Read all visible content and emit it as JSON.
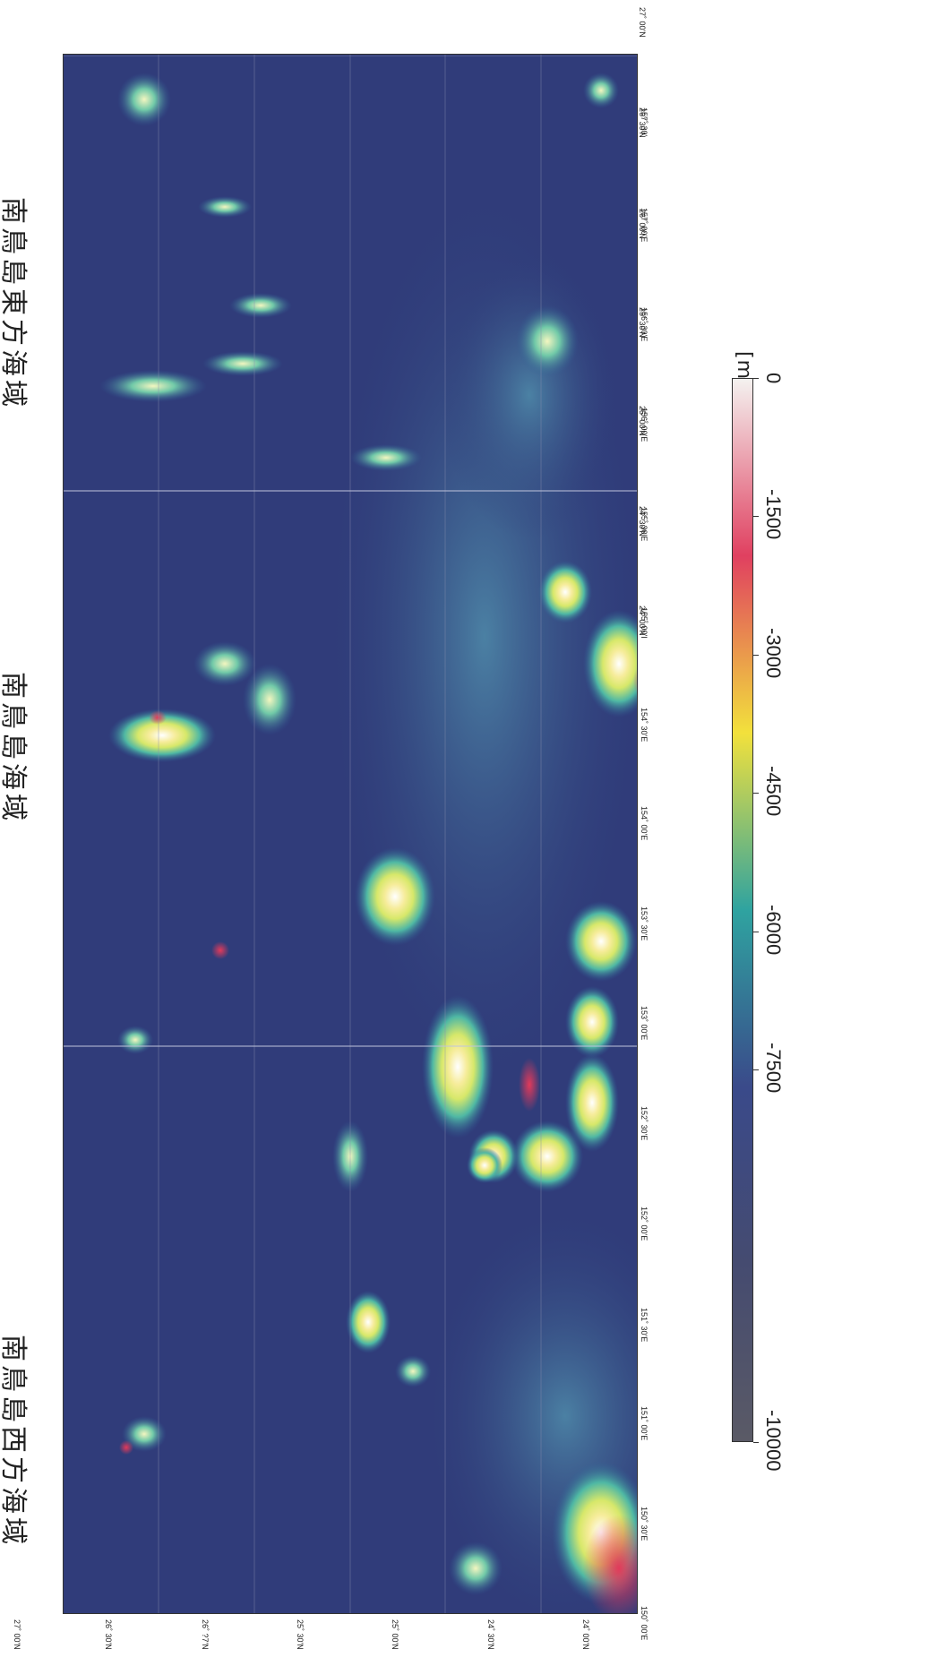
{
  "regions": [
    {
      "label": "南鳥島西方海域"
    },
    {
      "label": "南鳥島海域"
    },
    {
      "label": "南鳥島東方海域"
    }
  ],
  "latitude_labels": [
    "27˚ 00'N",
    "26˚ 30'N",
    "26˚ 00'N",
    "25˚ 30'N",
    "25˚ 00'N",
    "24˚ 30'N",
    "24˚ 00'N"
  ],
  "latitude_labels_left": [
    "27˚ 00'N",
    "26˚ 30'N",
    "26˚ ?7'N",
    "25˚ 30'N",
    "25˚ 00'N",
    "24˚ 30'N",
    "24˚ 00'N"
  ],
  "longitude_labels": [
    "150˚ 00'E",
    "150˚ 30'E",
    "151˚ 00'E",
    "151˚ 30'E",
    "152˚ 00'E",
    "152˚ 30'E",
    "153˚ 00'E",
    "153˚ 30'E",
    "154˚ 00'E",
    "154˚ 30'E",
    "155˚ 00'I",
    "155˚ 30'E",
    "156˚ 00'E",
    "156˚ 30'E",
    "157˚ 00'E",
    "157˚ 30'"
  ],
  "colorbar": {
    "unit": "[m]",
    "ticks": [
      "0",
      "-1500",
      "-3000",
      "-4500",
      "-6000",
      "-7500",
      "-10000"
    ],
    "colors": [
      "#f4f2f0",
      "#e04060",
      "#f2e13c",
      "#2fa3a0",
      "#3a4a8a",
      "#454b70",
      "#5a5a66"
    ]
  },
  "map": {
    "features": [
      {
        "name": "seamount",
        "lon": 152.0,
        "lat": 26.45,
        "depth_class": "shallow"
      },
      {
        "name": "seamount",
        "lon": 153.2,
        "lat": 25.5,
        "depth_class": "shallow"
      },
      {
        "name": "seamount",
        "lon": 152.7,
        "lat": 25.2,
        "depth_class": "shallow"
      },
      {
        "name": "seamount",
        "lon": 152.9,
        "lat": 24.8,
        "depth_class": "shallow"
      },
      {
        "name": "seamount",
        "lon": 154.0,
        "lat": 24.3,
        "depth_class": "shallow"
      },
      {
        "name": "seamount",
        "lon": 154.4,
        "lat": 24.6,
        "depth_class": "shallow"
      },
      {
        "name": "seamount",
        "lon": 155.9,
        "lat": 24.8,
        "depth_class": "mid"
      },
      {
        "name": "seamount",
        "lon": 150.1,
        "lat": 24.15,
        "depth_class": "shallow"
      }
    ]
  }
}
